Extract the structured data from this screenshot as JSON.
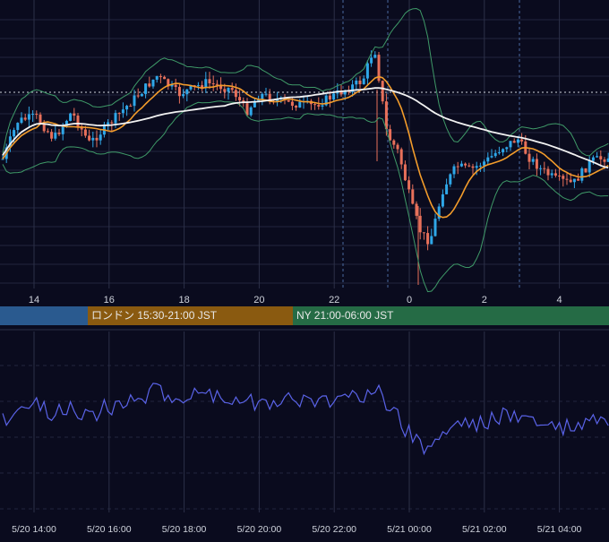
{
  "colors": {
    "background": "#0a0b1e",
    "grid": "#2c3048",
    "candle_up": "#2fa7e8",
    "candle_down": "#e8705a",
    "ma_short": "#f39c2b",
    "ma_long": "#f2f2f2",
    "bollinger": "#3f9a68",
    "oscillator": "#5a63e8",
    "session_tokyo": "#2a5a8f",
    "session_london": "#8a5a10",
    "session_ny": "#256b45"
  },
  "sessions": [
    {
      "label": ""
    },
    {
      "label": "ロンドン 15:30-21:00 JST"
    },
    {
      "label": "NY 21:00-06:00 JST"
    }
  ],
  "chart_data": [
    {
      "type": "candlestick",
      "title": "",
      "x_tick_labels": [
        "14",
        "16",
        "18",
        "20",
        "22",
        "0",
        "2",
        "4"
      ],
      "x_range_hours": [
        13.0,
        29.0
      ],
      "grid": true,
      "overlays": [
        "short moving average",
        "long moving average",
        "Bollinger bands"
      ],
      "series_description": "Price rises from 5/20 13:00 to a spike near 5/20 23:00, then drops sharply after 5/21 00:00 and partially recovers toward 5/21 05:00."
    },
    {
      "type": "line",
      "title": "",
      "x_tick_labels": [
        "5/20 14:00",
        "5/20 16:00",
        "5/20 18:00",
        "5/20 20:00",
        "5/20 22:00",
        "5/21 00:00",
        "5/21 02:00",
        "5/21 04:00"
      ],
      "x_range_hours": [
        13.0,
        29.0
      ],
      "grid": true
    }
  ]
}
